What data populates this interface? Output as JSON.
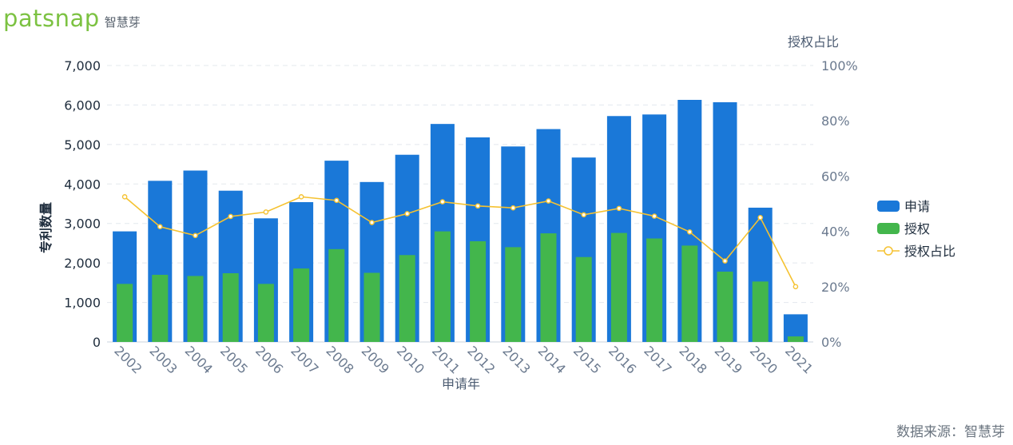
{
  "brand": {
    "word": "patsnap",
    "cn": "智慧芽"
  },
  "footer": "数据来源：智慧芽",
  "colors": {
    "apply": "#1a78d8",
    "grant": "#43b64c",
    "ratio": "#f5c231",
    "grid": "#e3e8ee"
  },
  "chart_data": {
    "type": "bar",
    "categories": [
      "2002",
      "2003",
      "2004",
      "2005",
      "2006",
      "2007",
      "2008",
      "2009",
      "2010",
      "2011",
      "2012",
      "2013",
      "2014",
      "2015",
      "2016",
      "2017",
      "2018",
      "2019",
      "2020",
      "2021"
    ],
    "series": [
      {
        "name": "申请",
        "type": "bar",
        "axis": "left",
        "values": [
          2800,
          4080,
          4340,
          3830,
          3130,
          3540,
          4590,
          4050,
          4740,
          5520,
          5180,
          4950,
          5390,
          4670,
          5720,
          5760,
          6130,
          6070,
          3400,
          700
        ]
      },
      {
        "name": "授权",
        "type": "bar",
        "axis": "left",
        "values": [
          1470,
          1700,
          1670,
          1740,
          1470,
          1860,
          2350,
          1750,
          2200,
          2800,
          2550,
          2400,
          2750,
          2150,
          2760,
          2620,
          2440,
          1780,
          1530,
          140
        ]
      },
      {
        "name": "授权占比",
        "type": "line",
        "axis": "right",
        "values": [
          52.5,
          41.7,
          38.5,
          45.4,
          47.0,
          52.5,
          51.2,
          43.2,
          46.4,
          50.7,
          49.2,
          48.5,
          51.0,
          46.0,
          48.3,
          45.5,
          39.8,
          29.3,
          45.0,
          20.0
        ]
      }
    ],
    "xlabel": "申请年",
    "ylabel": "专利数量",
    "y2label": "授权占比",
    "ylim": [
      0,
      7000
    ],
    "y2lim": [
      0,
      100
    ],
    "yticks": [
      "0",
      "1,000",
      "2,000",
      "3,000",
      "4,000",
      "5,000",
      "6,000",
      "7,000"
    ],
    "y2ticks": [
      "0%",
      "20%",
      "40%",
      "60%",
      "80%",
      "100%"
    ],
    "grid": true,
    "legend": "right"
  }
}
